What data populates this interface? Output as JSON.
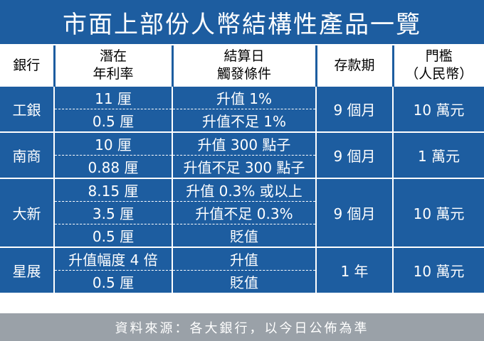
{
  "title": "市面上部份人幣結構性產品一覽",
  "colors": {
    "primary": "#1d5da0",
    "footer_bg": "#9aa1a8",
    "header_bg": "#ffffff"
  },
  "table": {
    "headers": {
      "bank": "銀行",
      "rate_1": "潛在",
      "rate_2": "年利率",
      "cond_1": "結算日",
      "cond_2": "觸發條件",
      "tenor": "存款期",
      "min_1": "門檻",
      "min_2": "（人民幣）"
    },
    "groups": [
      {
        "bank": "工銀",
        "tenor": "9 個月",
        "minimum": "10 萬元",
        "rows": [
          {
            "rate": "11 厘",
            "condition": "升值 1%"
          },
          {
            "rate": "0.5 厘",
            "condition": "升值不足 1%"
          }
        ]
      },
      {
        "bank": "南商",
        "tenor": "9 個月",
        "minimum": "1 萬元",
        "rows": [
          {
            "rate": "10 厘",
            "condition": "升值 300 點子"
          },
          {
            "rate": "0.88 厘",
            "condition": "升值不足 300 點子"
          }
        ]
      },
      {
        "bank": "大新",
        "tenor": "9 個月",
        "minimum": "10 萬元",
        "rows": [
          {
            "rate": "8.15 厘",
            "condition": "升值 0.3% 或以上"
          },
          {
            "rate": "3.5 厘",
            "condition": "升值不足 0.3%"
          },
          {
            "rate": "0.5 厘",
            "condition": "貶值"
          }
        ]
      },
      {
        "bank": "星展",
        "tenor": "1 年",
        "minimum": "10 萬元",
        "rows": [
          {
            "rate": "升值幅度 4 倍",
            "condition": "升值"
          },
          {
            "rate": "0.5 厘",
            "condition": "貶值"
          }
        ]
      }
    ]
  },
  "footer": "資料來源：各大銀行，以今日公佈為準"
}
